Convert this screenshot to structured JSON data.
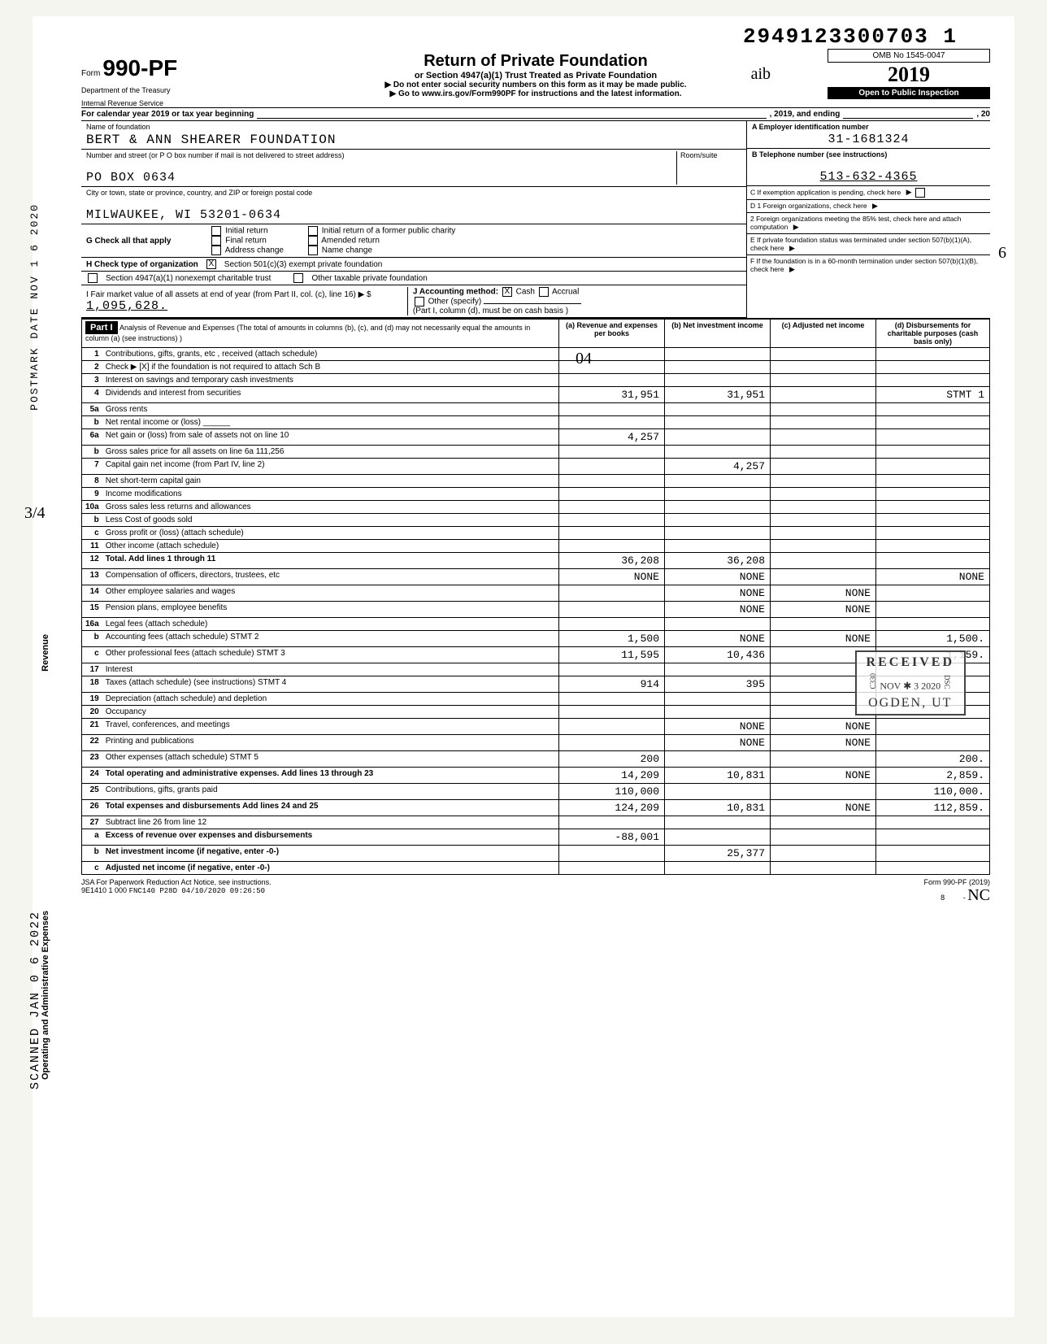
{
  "barcode": "2949123300703 1",
  "header": {
    "form_prefix": "Form",
    "form_number": "990-PF",
    "dept1": "Department of the Treasury",
    "dept2": "Internal Revenue Service",
    "title": "Return of Private Foundation",
    "subtitle": "or Section 4947(a)(1) Trust Treated as Private Foundation",
    "note1": "▶ Do not enter social security numbers on this form as it may be made public.",
    "note2": "▶ Go to www.irs.gov/Form990PF for instructions and the latest information.",
    "omb": "OMB No 1545-0047",
    "year": "2019",
    "inspection": "Open to Public Inspection"
  },
  "cal": {
    "label_a": "For calendar year 2019 or tax year beginning",
    "label_b": ", 2019, and ending",
    "label_c": ", 20"
  },
  "foundation": {
    "name_label": "Name of foundation",
    "name": "BERT & ANN SHEARER FOUNDATION",
    "addr_label": "Number and street (or P O  box number if mail is not delivered to street address)",
    "room_label": "Room/suite",
    "addr": "PO BOX 0634",
    "city_label": "City or town, state or province, country, and ZIP or foreign postal code",
    "city": "MILWAUKEE, WI 53201-0634"
  },
  "right": {
    "A_label": "A  Employer identification number",
    "A_val": "31-1681324",
    "B_label": "B  Telephone number (see instructions)",
    "B_val": "513-632-4365",
    "C_label": "C  If exemption application is pending, check here",
    "D1": "D  1 Foreign organizations, check here",
    "D2": "2 Foreign organizations meeting the 85% test, check here and attach computation",
    "E": "E  If private foundation status was terminated under section 507(b)(1)(A), check here",
    "F": "F  If the foundation is in a 60-month termination under section 507(b)(1)(B), check here"
  },
  "G": {
    "label": "G  Check all that apply",
    "opts": [
      "Initial return",
      "Final return",
      "Address change",
      "Initial return of a former public charity",
      "Amended return",
      "Name change"
    ]
  },
  "H": {
    "label": "H  Check type of organization",
    "opt1": "Section 501(c)(3) exempt private foundation",
    "opt2": "Section 4947(a)(1) nonexempt charitable trust",
    "opt3": "Other taxable private foundation",
    "checked": "X"
  },
  "I": {
    "label": "I  Fair market value of all assets at end of year (from Part II, col. (c), line 16) ▶ $",
    "val": "1,095,628."
  },
  "J": {
    "label": "J Accounting method:",
    "cash": "Cash",
    "accrual": "Accrual",
    "other": "Other (specify)",
    "note": "(Part I, column (d), must be on cash basis )",
    "checked": "X"
  },
  "part1": {
    "bar": "Part I",
    "title": "Analysis of Revenue and Expenses (The total of amounts in columns (b), (c), and (d) may not necessarily equal the amounts in column (a) (see instructions) )",
    "col_a": "(a) Revenue and expenses per books",
    "col_b": "(b) Net investment income",
    "col_c": "(c) Adjusted net income",
    "col_d": "(d) Disbursements for charitable purposes (cash basis only)"
  },
  "rows": [
    {
      "n": "1",
      "d": "Contributions, gifts, grants, etc , received (attach schedule)"
    },
    {
      "n": "2",
      "d": "Check ▶ [X] if the foundation is not required to attach Sch B"
    },
    {
      "n": "3",
      "d": "Interest on savings and temporary cash investments"
    },
    {
      "n": "4",
      "d": "Dividends and interest from securities",
      "a": "31,951",
      "b": "31,951",
      "dcol": "STMT 1"
    },
    {
      "n": "5a",
      "d": "Gross rents"
    },
    {
      "n": "b",
      "d": "Net rental income or (loss) ______"
    },
    {
      "n": "6a",
      "d": "Net gain or (loss) from sale of assets not on line 10",
      "a": "4,257"
    },
    {
      "n": "b",
      "d": "Gross sales price for all assets on line 6a         111,256"
    },
    {
      "n": "7",
      "d": "Capital gain net income (from Part IV, line 2)",
      "b": "4,257"
    },
    {
      "n": "8",
      "d": "Net short-term capital gain"
    },
    {
      "n": "9",
      "d": "Income modifications"
    },
    {
      "n": "10a",
      "d": "Gross sales less returns and allowances"
    },
    {
      "n": "b",
      "d": "Less Cost of goods sold"
    },
    {
      "n": "c",
      "d": "Gross profit or (loss) (attach schedule)"
    },
    {
      "n": "11",
      "d": "Other income (attach schedule)"
    },
    {
      "n": "12",
      "d": "Total. Add lines 1 through 11",
      "a": "36,208",
      "b": "36,208",
      "bold": true
    },
    {
      "n": "13",
      "d": "Compensation of officers, directors, trustees, etc",
      "a": "NONE",
      "b": "NONE",
      "dcol": "NONE"
    },
    {
      "n": "14",
      "d": "Other employee salaries and wages",
      "b": "NONE",
      "c": "NONE"
    },
    {
      "n": "15",
      "d": "Pension plans, employee benefits",
      "b": "NONE",
      "c": "NONE"
    },
    {
      "n": "16a",
      "d": "Legal fees (attach schedule)"
    },
    {
      "n": "b",
      "d": "Accounting fees (attach schedule) STMT 2",
      "a": "1,500",
      "b": "NONE",
      "c": "NONE",
      "dcol": "1,500."
    },
    {
      "n": "c",
      "d": "Other professional fees (attach schedule) STMT 3",
      "a": "11,595",
      "b": "10,436",
      "dcol": "1,159."
    },
    {
      "n": "17",
      "d": "Interest"
    },
    {
      "n": "18",
      "d": "Taxes (attach schedule) (see instructions) STMT 4",
      "a": "914",
      "b": "395"
    },
    {
      "n": "19",
      "d": "Depreciation (attach schedule) and depletion"
    },
    {
      "n": "20",
      "d": "Occupancy"
    },
    {
      "n": "21",
      "d": "Travel, conferences, and meetings",
      "b": "NONE",
      "c": "NONE"
    },
    {
      "n": "22",
      "d": "Printing and publications",
      "b": "NONE",
      "c": "NONE"
    },
    {
      "n": "23",
      "d": "Other expenses (attach schedule) STMT 5",
      "a": "200",
      "dcol": "200."
    },
    {
      "n": "24",
      "d": "Total operating and administrative expenses. Add lines 13 through 23",
      "a": "14,209",
      "b": "10,831",
      "c": "NONE",
      "dcol": "2,859.",
      "bold": true
    },
    {
      "n": "25",
      "d": "Contributions, gifts, grants paid",
      "a": "110,000",
      "dcol": "110,000."
    },
    {
      "n": "26",
      "d": "Total expenses and disbursements Add lines 24 and 25",
      "a": "124,209",
      "b": "10,831",
      "c": "NONE",
      "dcol": "112,859.",
      "bold": true
    },
    {
      "n": "27",
      "d": "Subtract line 26 from line 12"
    },
    {
      "n": "a",
      "d": "Excess of revenue over expenses and disbursements",
      "a": "-88,001",
      "bold": true
    },
    {
      "n": "b",
      "d": "Net investment income (if negative, enter -0-)",
      "b": "25,377",
      "bold": true
    },
    {
      "n": "c",
      "d": "Adjusted net income (if negative, enter -0-)",
      "bold": true
    }
  ],
  "side_labels": {
    "revenue": "Revenue",
    "operating": "Operating and Administrative Expenses"
  },
  "stamps": {
    "postmark": "POSTMARK DATE NOV 1 6 2020",
    "scanned": "SCANNED  JAN 0 6 2022",
    "received_title": "RECEIVED",
    "received_date": "NOV ✱ 3 2020",
    "received_loc": "OGDEN, UT"
  },
  "hand": {
    "three_four": "3/4",
    "oh_four": "04",
    "initials": "NC",
    "initials2": "aib",
    "sixp": "6"
  },
  "footer": {
    "jsa": "JSA For Paperwork Reduction Act Notice, see instructions.",
    "code": "9E1410 1 000",
    "stamp": "FNC140 P28D 04/10/2020 09:26:50",
    "form": "Form 990-PF (2019)",
    "page": "8"
  }
}
